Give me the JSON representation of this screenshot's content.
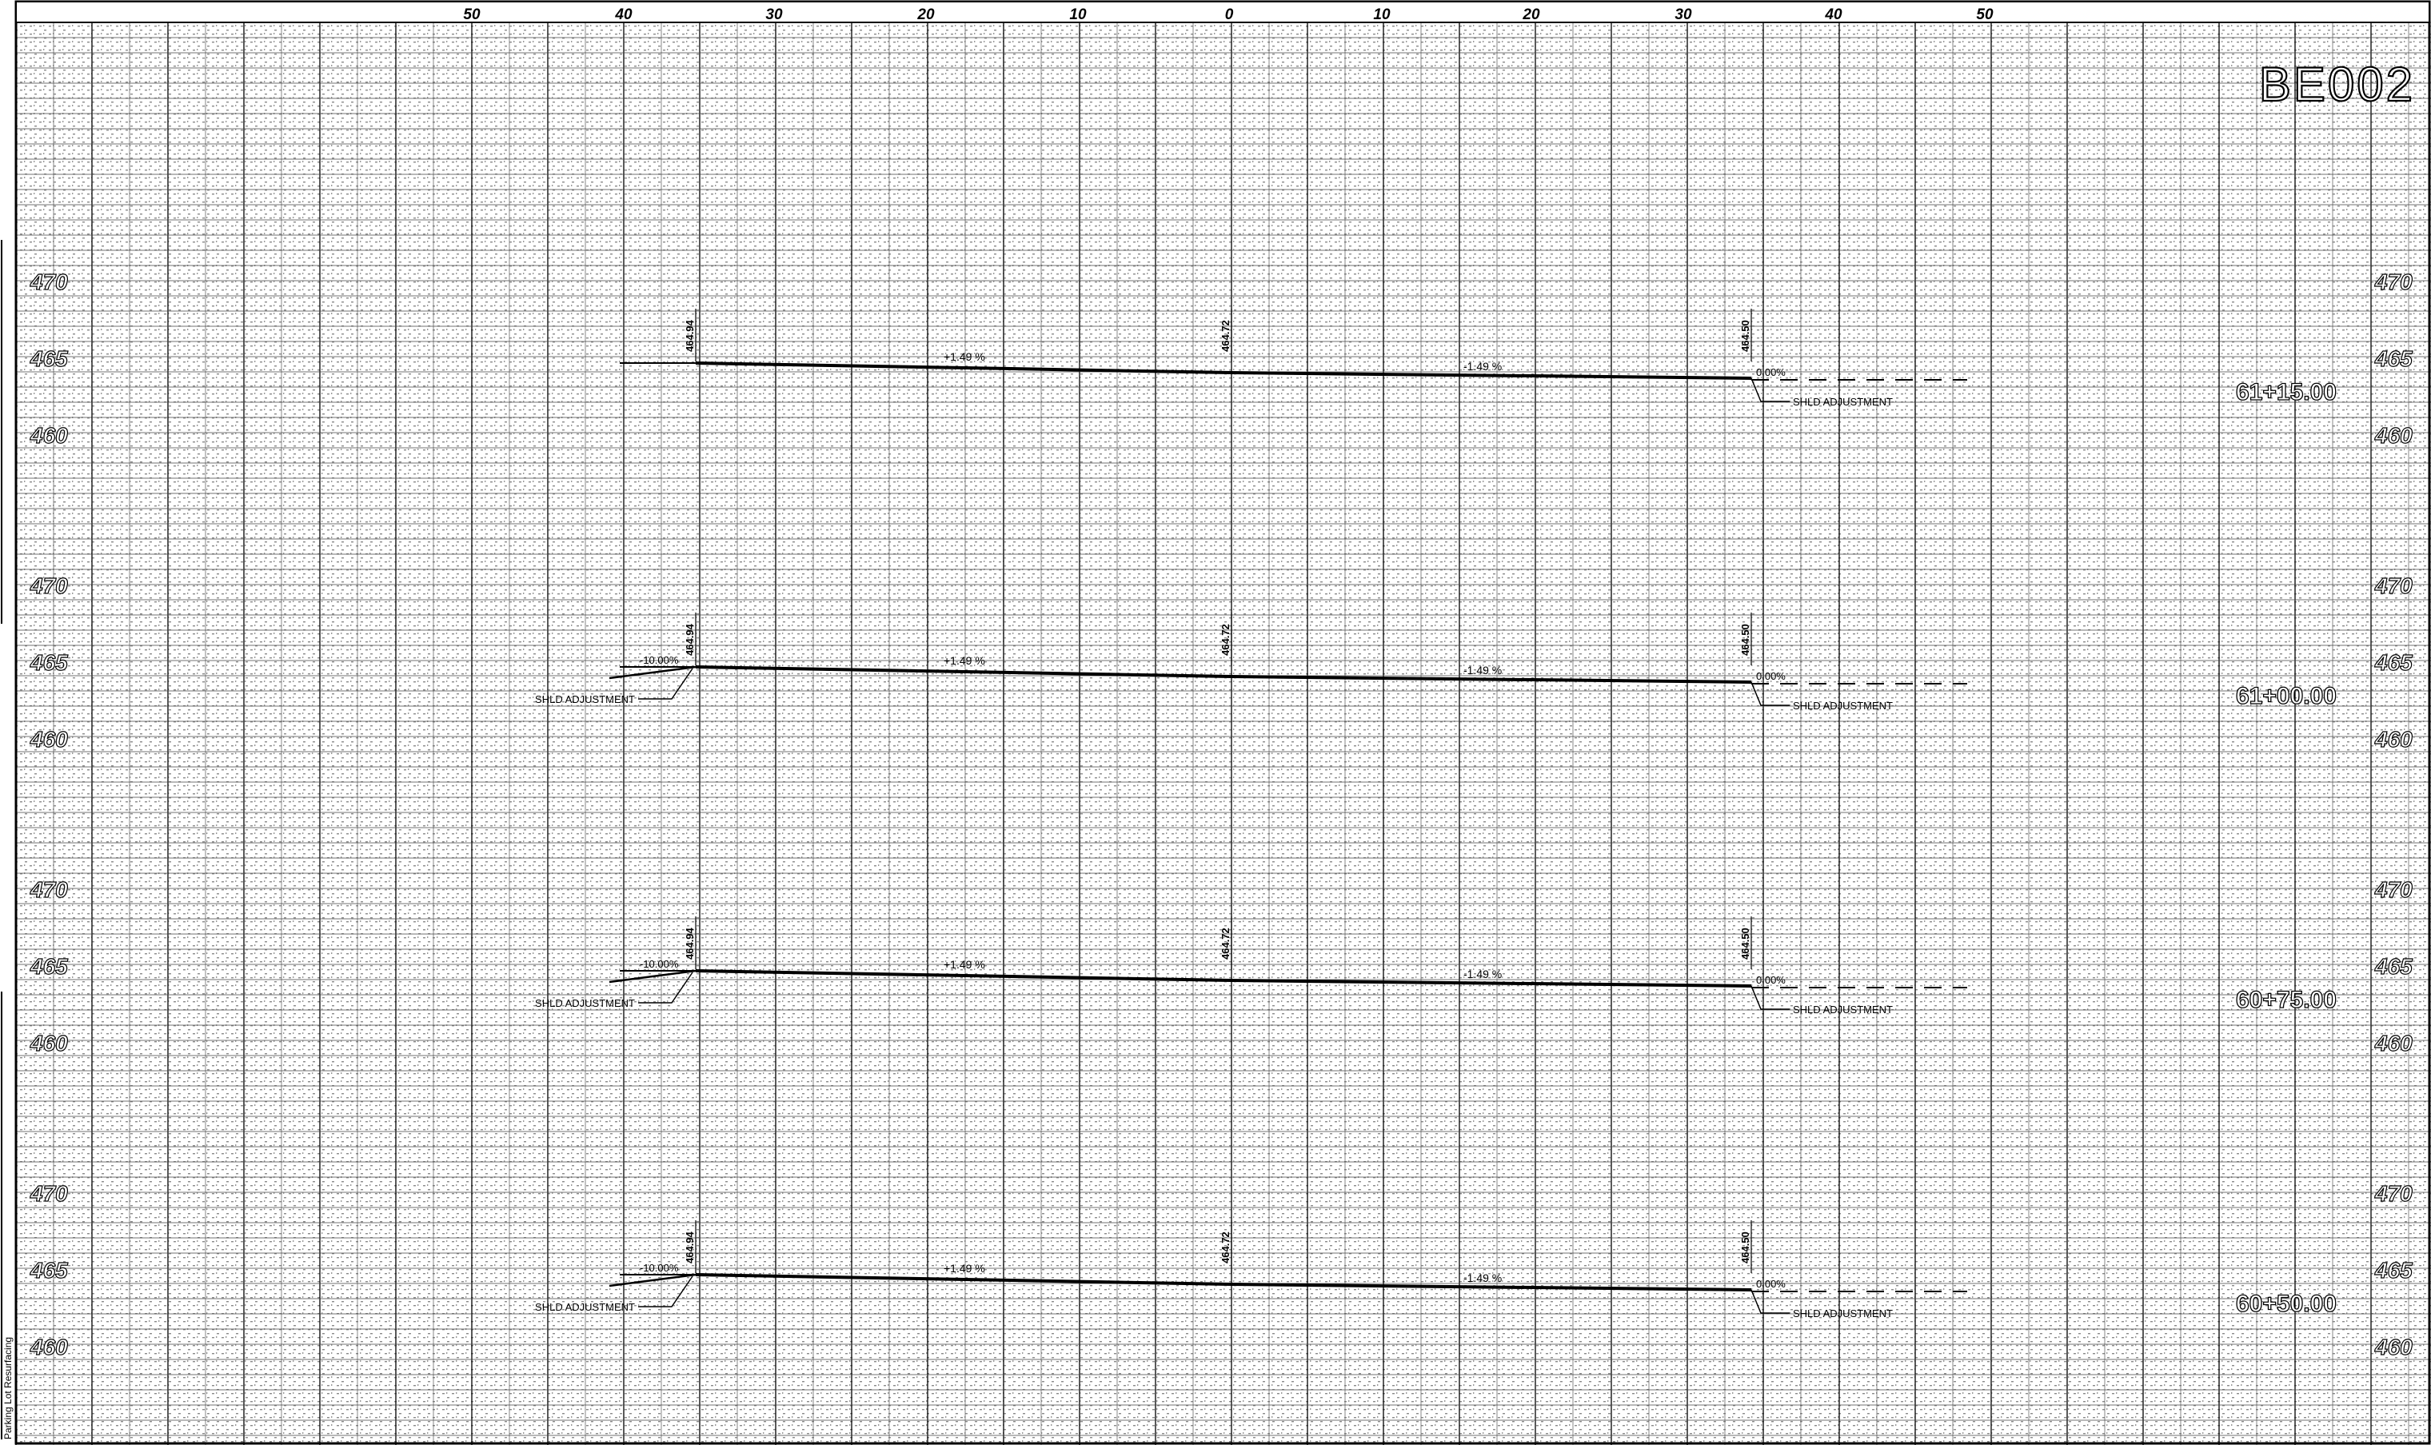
{
  "sheet": {
    "id": "BE002",
    "offset_scale": [
      "50",
      "40",
      "30",
      "20",
      "10",
      "0",
      "10",
      "20",
      "30",
      "40",
      "50"
    ],
    "side_note": "Parking Lot Resurfacing"
  },
  "sections": [
    {
      "station": "61+15.00",
      "elevation_labels": [
        "470",
        "465",
        "460"
      ],
      "left_edge_elev": "464.94",
      "center_elev": "464.72",
      "right_edge_elev": "464.50",
      "left_slope": "+1.49 %",
      "right_slope": "-1.49 %",
      "left_shoulder_slope": "",
      "right_shoulder_slope": "0.00%",
      "left_note": "",
      "right_note": "SHLD ADJUSTMENT"
    },
    {
      "station": "61+00.00",
      "elevation_labels": [
        "470",
        "465",
        "460"
      ],
      "left_edge_elev": "464.94",
      "center_elev": "464.72",
      "right_edge_elev": "464.50",
      "left_slope": "+1.49 %",
      "right_slope": "-1.49 %",
      "left_shoulder_slope": "-10.00%",
      "right_shoulder_slope": "0.00%",
      "left_note": "SHLD ADJUSTMENT",
      "right_note": "SHLD ADJUSTMENT"
    },
    {
      "station": "60+75.00",
      "elevation_labels": [
        "470",
        "465",
        "460"
      ],
      "left_edge_elev": "464.94",
      "center_elev": "464.72",
      "right_edge_elev": "464.50",
      "left_slope": "+1.49 %",
      "right_slope": "-1.49 %",
      "left_shoulder_slope": "-10.00%",
      "right_shoulder_slope": "0.00%",
      "left_note": "SHLD ADJUSTMENT",
      "right_note": "SHLD ADJUSTMENT"
    },
    {
      "station": "60+50.00",
      "elevation_labels": [
        "470",
        "465",
        "460"
      ],
      "left_edge_elev": "464.94",
      "center_elev": "464.72",
      "right_edge_elev": "464.50",
      "left_slope": "+1.49 %",
      "right_slope": "-1.49 %",
      "left_shoulder_slope": "-10.00%",
      "right_shoulder_slope": "0.00%",
      "left_note": "SHLD ADJUSTMENT",
      "right_note": "SHLD ADJUSTMENT"
    }
  ]
}
